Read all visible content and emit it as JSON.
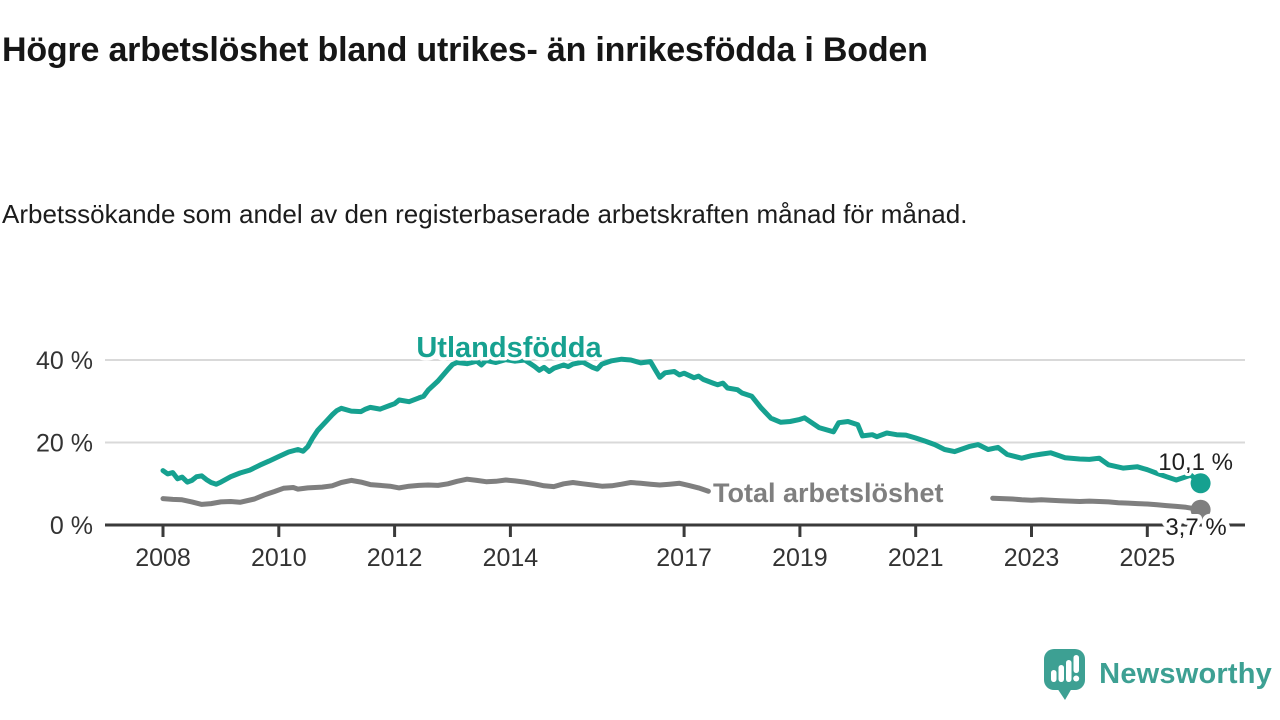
{
  "header": {
    "title": "Högre arbetslöshet bland utrikes- än inrikesfödda i Boden",
    "subtitle": "Arbetssökande som andel av den registerbaserade arbetskraften månad för månad."
  },
  "chart_data": {
    "type": "line",
    "unit": "%",
    "xlim": [
      2007.85,
      2026.2
    ],
    "ylim": [
      0,
      44
    ],
    "grid": true,
    "legend_position": "inline-labels",
    "x_ticks": [
      2008,
      2010,
      2012,
      2014,
      2017,
      2019,
      2021,
      2023,
      2025
    ],
    "x_tick_labels": [
      "2008",
      "2010",
      "2012",
      "2014",
      "2017",
      "2019",
      "2021",
      "2023",
      "2025"
    ],
    "y_ticks": [
      0,
      20,
      40
    ],
    "y_tick_labels": [
      "0 %",
      "20 %",
      "40 %"
    ],
    "series": [
      {
        "name": "Utlandsfödda",
        "color": "#16a190",
        "end_label": "10,1 %",
        "end_value": 10.1,
        "segments": [
          [
            [
              2008.0,
              13.2
            ],
            [
              2008.08,
              12.4
            ],
            [
              2008.17,
              12.7
            ],
            [
              2008.25,
              11.2
            ],
            [
              2008.33,
              11.6
            ],
            [
              2008.42,
              10.4
            ],
            [
              2008.5,
              10.8
            ],
            [
              2008.58,
              11.7
            ],
            [
              2008.67,
              11.9
            ],
            [
              2008.75,
              11.0
            ],
            [
              2008.83,
              10.3
            ],
            [
              2008.92,
              9.9
            ],
            [
              2009.0,
              10.4
            ],
            [
              2009.17,
              11.7
            ],
            [
              2009.33,
              12.6
            ],
            [
              2009.5,
              13.3
            ],
            [
              2009.67,
              14.5
            ],
            [
              2009.83,
              15.5
            ],
            [
              2010.0,
              16.6
            ],
            [
              2010.17,
              17.7
            ],
            [
              2010.33,
              18.3
            ],
            [
              2010.42,
              17.9
            ],
            [
              2010.5,
              19.0
            ],
            [
              2010.58,
              21.0
            ],
            [
              2010.67,
              22.9
            ],
            [
              2010.75,
              24.1
            ],
            [
              2010.83,
              25.3
            ],
            [
              2010.92,
              26.7
            ],
            [
              2011.0,
              27.7
            ],
            [
              2011.08,
              28.3
            ],
            [
              2011.25,
              27.6
            ],
            [
              2011.42,
              27.5
            ],
            [
              2011.5,
              28.1
            ],
            [
              2011.58,
              28.5
            ],
            [
              2011.75,
              28.1
            ],
            [
              2011.92,
              29.0
            ],
            [
              2012.0,
              29.4
            ],
            [
              2012.08,
              30.3
            ],
            [
              2012.25,
              29.9
            ],
            [
              2012.42,
              30.8
            ],
            [
              2012.5,
              31.2
            ],
            [
              2012.58,
              32.7
            ],
            [
              2012.75,
              34.9
            ],
            [
              2012.92,
              37.7
            ],
            [
              2013.0,
              38.9
            ],
            [
              2013.08,
              39.4
            ],
            [
              2013.25,
              39.1
            ],
            [
              2013.42,
              39.7
            ],
            [
              2013.5,
              38.8
            ],
            [
              2013.58,
              39.9
            ],
            [
              2013.75,
              39.4
            ],
            [
              2013.92,
              40.1
            ],
            [
              2014.08,
              39.7
            ],
            [
              2014.25,
              40.0
            ],
            [
              2014.42,
              38.4
            ],
            [
              2014.5,
              37.5
            ],
            [
              2014.58,
              38.2
            ],
            [
              2014.67,
              37.2
            ],
            [
              2014.75,
              38.0
            ],
            [
              2014.92,
              38.8
            ],
            [
              2015.0,
              38.4
            ],
            [
              2015.08,
              39.0
            ],
            [
              2015.25,
              39.5
            ],
            [
              2015.42,
              38.2
            ],
            [
              2015.5,
              37.8
            ],
            [
              2015.58,
              39.0
            ],
            [
              2015.75,
              39.8
            ],
            [
              2015.92,
              40.2
            ],
            [
              2016.08,
              40.0
            ],
            [
              2016.25,
              39.3
            ],
            [
              2016.42,
              39.6
            ],
            [
              2016.5,
              37.7
            ],
            [
              2016.58,
              35.8
            ],
            [
              2016.67,
              36.9
            ],
            [
              2016.83,
              37.2
            ],
            [
              2016.92,
              36.4
            ],
            [
              2017.0,
              36.8
            ],
            [
              2017.17,
              35.7
            ],
            [
              2017.25,
              36.1
            ],
            [
              2017.33,
              35.3
            ],
            [
              2017.5,
              34.4
            ],
            [
              2017.58,
              34.0
            ],
            [
              2017.67,
              34.4
            ],
            [
              2017.75,
              33.2
            ],
            [
              2017.92,
              32.8
            ],
            [
              2018.0,
              32.0
            ],
            [
              2018.17,
              31.2
            ],
            [
              2018.33,
              28.4
            ],
            [
              2018.5,
              25.9
            ],
            [
              2018.67,
              24.9
            ],
            [
              2018.83,
              25.1
            ],
            [
              2019.0,
              25.6
            ],
            [
              2019.08,
              26.0
            ],
            [
              2019.33,
              23.6
            ],
            [
              2019.58,
              22.6
            ],
            [
              2019.67,
              24.8
            ],
            [
              2019.83,
              25.1
            ],
            [
              2020.0,
              24.3
            ],
            [
              2020.08,
              21.6
            ],
            [
              2020.25,
              21.9
            ],
            [
              2020.33,
              21.4
            ],
            [
              2020.5,
              22.3
            ],
            [
              2020.67,
              21.9
            ],
            [
              2020.83,
              21.8
            ],
            [
              2021.0,
              21.1
            ],
            [
              2021.17,
              20.3
            ],
            [
              2021.33,
              19.5
            ],
            [
              2021.5,
              18.3
            ],
            [
              2021.67,
              17.8
            ],
            [
              2021.92,
              19.0
            ],
            [
              2022.08,
              19.5
            ],
            [
              2022.25,
              18.3
            ],
            [
              2022.42,
              18.8
            ],
            [
              2022.58,
              17.1
            ],
            [
              2022.83,
              16.2
            ],
            [
              2023.0,
              16.8
            ],
            [
              2023.17,
              17.2
            ],
            [
              2023.33,
              17.5
            ],
            [
              2023.58,
              16.3
            ],
            [
              2023.83,
              16.0
            ],
            [
              2024.0,
              15.9
            ],
            [
              2024.17,
              16.2
            ],
            [
              2024.33,
              14.6
            ],
            [
              2024.58,
              13.8
            ],
            [
              2024.83,
              14.1
            ],
            [
              2025.0,
              13.4
            ],
            [
              2025.17,
              12.5
            ],
            [
              2025.33,
              11.7
            ],
            [
              2025.5,
              10.9
            ],
            [
              2025.67,
              11.7
            ],
            [
              2025.75,
              12.1
            ],
            [
              2025.92,
              10.1
            ]
          ]
        ]
      },
      {
        "name": "Total arbetslöshet",
        "color": "#7f7f7f",
        "end_label": "3,7 %",
        "end_value": 3.7,
        "segments": [
          [
            [
              2008.0,
              6.4
            ],
            [
              2008.17,
              6.2
            ],
            [
              2008.33,
              6.1
            ],
            [
              2008.5,
              5.6
            ],
            [
              2008.67,
              5.0
            ],
            [
              2008.83,
              5.2
            ],
            [
              2009.0,
              5.6
            ],
            [
              2009.17,
              5.7
            ],
            [
              2009.33,
              5.5
            ],
            [
              2009.58,
              6.3
            ],
            [
              2009.75,
              7.3
            ],
            [
              2009.92,
              8.1
            ],
            [
              2010.08,
              8.9
            ],
            [
              2010.25,
              9.1
            ],
            [
              2010.33,
              8.7
            ],
            [
              2010.5,
              9.0
            ],
            [
              2010.75,
              9.2
            ],
            [
              2010.92,
              9.5
            ],
            [
              2011.08,
              10.3
            ],
            [
              2011.25,
              10.8
            ],
            [
              2011.42,
              10.4
            ],
            [
              2011.58,
              9.8
            ],
            [
              2011.75,
              9.6
            ],
            [
              2011.92,
              9.4
            ],
            [
              2012.08,
              9.0
            ],
            [
              2012.25,
              9.4
            ],
            [
              2012.42,
              9.6
            ],
            [
              2012.58,
              9.7
            ],
            [
              2012.75,
              9.6
            ],
            [
              2012.92,
              10.0
            ],
            [
              2013.08,
              10.6
            ],
            [
              2013.25,
              11.1
            ],
            [
              2013.42,
              10.8
            ],
            [
              2013.58,
              10.5
            ],
            [
              2013.75,
              10.6
            ],
            [
              2013.92,
              10.9
            ],
            [
              2014.08,
              10.7
            ],
            [
              2014.25,
              10.4
            ],
            [
              2014.42,
              10.0
            ],
            [
              2014.58,
              9.5
            ],
            [
              2014.75,
              9.3
            ],
            [
              2014.92,
              10.0
            ],
            [
              2015.08,
              10.3
            ],
            [
              2015.25,
              10.0
            ],
            [
              2015.42,
              9.7
            ],
            [
              2015.58,
              9.4
            ],
            [
              2015.75,
              9.5
            ],
            [
              2015.92,
              9.9
            ],
            [
              2016.08,
              10.3
            ],
            [
              2016.25,
              10.1
            ],
            [
              2016.42,
              9.9
            ],
            [
              2016.58,
              9.7
            ],
            [
              2016.75,
              9.9
            ],
            [
              2016.92,
              10.1
            ],
            [
              2017.08,
              9.6
            ],
            [
              2017.25,
              9.0
            ],
            [
              2017.42,
              8.2
            ]
          ],
          [
            [
              2022.33,
              6.5
            ],
            [
              2022.5,
              6.4
            ],
            [
              2022.67,
              6.3
            ],
            [
              2022.83,
              6.1
            ],
            [
              2023.0,
              6.0
            ],
            [
              2023.17,
              6.1
            ],
            [
              2023.33,
              6.0
            ],
            [
              2023.5,
              5.9
            ],
            [
              2023.67,
              5.8
            ],
            [
              2023.83,
              5.7
            ],
            [
              2024.0,
              5.8
            ],
            [
              2024.17,
              5.7
            ],
            [
              2024.33,
              5.6
            ],
            [
              2024.5,
              5.4
            ],
            [
              2024.67,
              5.3
            ],
            [
              2024.83,
              5.2
            ],
            [
              2025.0,
              5.1
            ],
            [
              2025.17,
              4.9
            ],
            [
              2025.33,
              4.7
            ],
            [
              2025.5,
              4.5
            ],
            [
              2025.67,
              4.3
            ],
            [
              2025.92,
              3.7
            ]
          ]
        ]
      }
    ]
  },
  "footer": {
    "brand": "Newsworthy",
    "brand_color": "#3da093"
  }
}
